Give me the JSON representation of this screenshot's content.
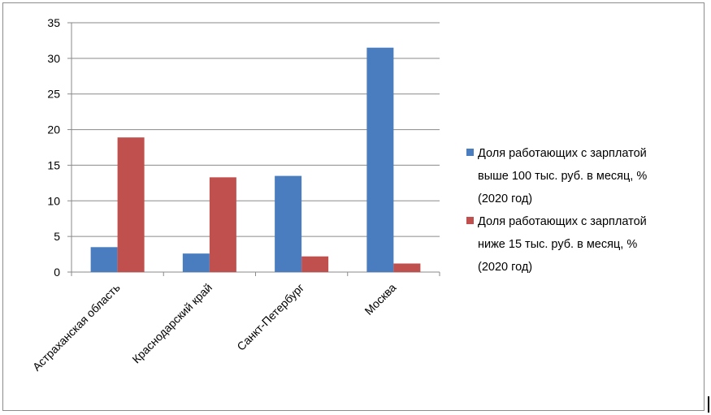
{
  "chart_data": {
    "type": "bar",
    "categories": [
      "Астраханская область",
      "Краснодарский край",
      "Санкт-Петербург",
      "Москва"
    ],
    "series": [
      {
        "name": "Доля работающих с зарплатой выше 100 тыс. руб. в месяц, % (2020 год)",
        "legend_lines": [
          "Доля работающих с зарплатой",
          "выше 100 тыс. руб. в месяц, %",
          "(2020 год)"
        ],
        "color": "#4a7dbf",
        "values": [
          3.5,
          2.6,
          13.5,
          31.5
        ]
      },
      {
        "name": "Доля работающих с зарплатой ниже 15 тыс. руб. в месяц, % (2020 год)",
        "legend_lines": [
          "Доля работающих с зарплатой",
          "ниже 15 тыс. руб. в месяц, %",
          "(2020 год)"
        ],
        "color": "#c0504d",
        "values": [
          18.9,
          13.3,
          2.2,
          1.2
        ]
      }
    ],
    "y_ticks": [
      "0",
      "5",
      "10",
      "15",
      "20",
      "25",
      "30",
      "35"
    ],
    "ylim": [
      0,
      35
    ],
    "grid": true,
    "legend_position": "right"
  }
}
